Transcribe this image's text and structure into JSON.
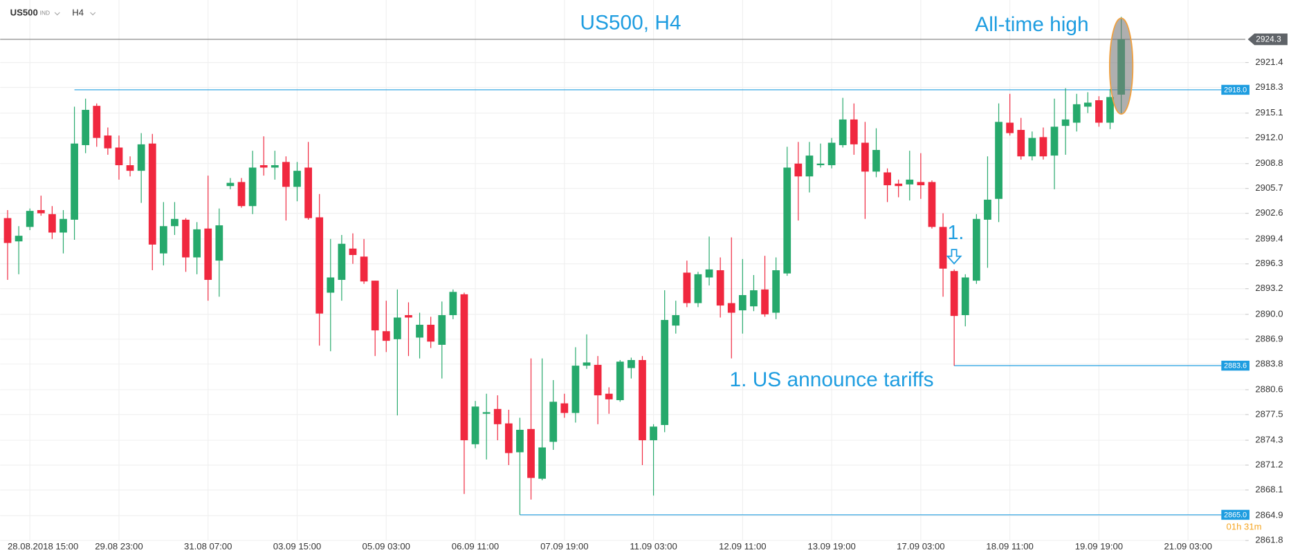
{
  "toolbar": {
    "symbol": "US500",
    "instrument_type": "IND",
    "timeframe": "H4"
  },
  "chart_data": {
    "type": "candlestick",
    "title": "US500, H4",
    "annotations": [
      "All-time high",
      "1. US announce tariffs",
      "1."
    ],
    "countdown": "01h 31m",
    "categories": [
      null,
      null,
      "28.08.2018 15:00",
      null,
      null,
      null,
      null,
      null,
      null,
      null,
      "29.08 23:00",
      null,
      null,
      null,
      null,
      null,
      null,
      null,
      "31.08 07:00",
      null,
      null,
      null,
      null,
      null,
      null,
      null,
      "03.09 15:00",
      null,
      null,
      null,
      null,
      null,
      null,
      null,
      "05.09 03:00",
      null,
      null,
      null,
      null,
      null,
      null,
      null,
      "06.09 11:00",
      null,
      null,
      null,
      null,
      null,
      null,
      null,
      "07.09 19:00",
      null,
      null,
      null,
      null,
      null,
      null,
      null,
      "11.09 03:00",
      null,
      null,
      null,
      null,
      null,
      null,
      null,
      "12.09 11:00",
      null,
      null,
      null,
      null,
      null,
      null,
      null,
      "13.09 19:00",
      null,
      null,
      null,
      null,
      null,
      null,
      null,
      "17.09 03:00",
      null,
      null,
      null,
      null,
      null,
      null,
      null,
      "18.09 11:00",
      null,
      null,
      null,
      null,
      null,
      null,
      null,
      "19.09 19:00",
      null,
      null,
      null,
      null,
      null,
      null,
      null,
      "21.09 03:00"
    ],
    "open": [
      2902.0,
      2899.1,
      2900.9,
      2903.0,
      2902.5,
      2900.2,
      2901.8,
      2911.1,
      2916.0,
      2912.3,
      2910.8,
      2908.6,
      2907.9,
      2911.3,
      2897.6,
      2901.0,
      2901.8,
      2897.1,
      2900.7,
      2896.7,
      2906.0,
      2906.5,
      2903.5,
      2908.6,
      2908.3,
      2909.0,
      2905.9,
      2908.3,
      2902.1,
      2892.7,
      2894.3,
      2898.2,
      2897.2,
      2894.2,
      2887.9,
      2886.9,
      2889.9,
      2887.1,
      2888.7,
      2886.2,
      2889.9,
      2892.5,
      2873.8,
      2877.6,
      2878.2,
      2876.4,
      2872.8,
      2875.7,
      2869.5,
      2874.1,
      2878.9,
      2877.7,
      2883.6,
      2883.7,
      2880.1,
      2879.3,
      2883.3,
      2884.3,
      2874.3,
      2876.2,
      2888.6,
      2895.2,
      2891.4,
      2894.6,
      2895.5,
      2891.4,
      2890.5,
      2891.0,
      2893.1,
      2890.2,
      2895.1,
      2908.8,
      2907.2,
      2908.6,
      2908.6,
      2911.1,
      2914.3,
      2911.4,
      2907.8,
      2907.7,
      2906.3,
      2906.2,
      2906.5,
      2906.5,
      2900.9,
      2895.4,
      2889.9,
      2894.2,
      2901.8,
      2904.4,
      2913.9,
      2913.0,
      2909.7,
      2912.1,
      2909.8,
      2913.5,
      2913.9,
      2915.9,
      2916.7,
      2913.9,
      2917.4,
      null,
      null,
      null,
      null,
      null,
      null
    ],
    "high": [
      2903.0,
      2901.0,
      2903.2,
      2904.8,
      2903.5,
      2903.0,
      2915.9,
      2916.9,
      2916.3,
      2913.3,
      2912.3,
      2909.7,
      2912.6,
      2912.5,
      2904.0,
      2904.0,
      2902.0,
      2901.5,
      2907.3,
      2903.2,
      2907.0,
      2907.0,
      2910.4,
      2912.2,
      2910.4,
      2909.7,
      2909.0,
      2911.5,
      2905.0,
      2899.4,
      2899.9,
      2900.1,
      2899.4,
      2894.2,
      2891.7,
      2893.1,
      2891.5,
      2890.2,
      2889.7,
      2891.6,
      2893.1,
      2892.7,
      2879.2,
      2880.1,
      2879.9,
      2878.1,
      2877.1,
      2884.5,
      2884.5,
      2881.8,
      2880.1,
      2885.9,
      2887.5,
      2884.8,
      2880.9,
      2884.3,
      2884.6,
      2884.8,
      2876.3,
      2893.0,
      2891.7,
      2896.7,
      2895.3,
      2899.7,
      2897.1,
      2899.6,
      2896.9,
      2894.9,
      2897.3,
      2897.1,
      2910.9,
      2911.5,
      2911.5,
      2911.3,
      2912.0,
      2917.0,
      2916.3,
      2914.0,
      2913.2,
      2908.2,
      2906.8,
      2910.4,
      2910.1,
      2906.7,
      2902.6,
      2895.6,
      2895.0,
      2902.5,
      2909.7,
      2916.3,
      2917.5,
      2914.5,
      2912.8,
      2913.3,
      2916.9,
      2918.2,
      2917.5,
      2917.7,
      2917.2,
      2918.1,
      2927.1,
      null,
      null,
      null,
      null,
      null,
      null
    ],
    "low": [
      2894.3,
      2895.0,
      2900.5,
      2902.3,
      2899.4,
      2897.6,
      2899.3,
      2910.1,
      2910.9,
      2909.9,
      2906.8,
      2907.2,
      2903.9,
      2895.5,
      2896.1,
      2899.9,
      2895.3,
      2895.0,
      2891.7,
      2892.2,
      2905.6,
      2903.3,
      2902.5,
      2907.3,
      2906.8,
      2901.7,
      2904.1,
      2901.8,
      2886.1,
      2885.4,
      2891.7,
      2896.3,
      2893.8,
      2884.8,
      2885.3,
      2877.4,
      2884.8,
      2884.5,
      2885.8,
      2882.0,
      2889.4,
      2867.6,
      2873.3,
      2871.9,
      2874.3,
      2871.2,
      2865.0,
      2866.9,
      2869.3,
      2873.1,
      2877.1,
      2876.5,
      2883.2,
      2876.3,
      2877.6,
      2879.1,
      2882.0,
      2871.2,
      2867.4,
      2875.3,
      2887.6,
      2890.9,
      2890.9,
      2893.6,
      2889.6,
      2884.5,
      2887.6,
      2890.4,
      2889.7,
      2889.4,
      2894.8,
      2901.7,
      2905.2,
      2908.3,
      2908.2,
      2910.8,
      2909.9,
      2901.9,
      2907.1,
      2904.0,
      2904.6,
      2904.2,
      2904.4,
      2900.7,
      2892.2,
      2883.6,
      2888.5,
      2893.8,
      2895.8,
      2901.5,
      2912.3,
      2909.3,
      2909.2,
      2909.3,
      2905.6,
      2909.9,
      2912.8,
      2915.1,
      2913.4,
      2913.1,
      2915.0,
      null,
      null,
      null,
      null,
      null,
      null
    ],
    "close": [
      2898.9,
      2899.8,
      2902.9,
      2902.6,
      2900.2,
      2901.9,
      2911.3,
      2915.5,
      2912.0,
      2910.7,
      2908.6,
      2907.9,
      2911.2,
      2898.7,
      2901.0,
      2901.9,
      2897.1,
      2900.6,
      2894.3,
      2901.1,
      2906.4,
      2903.5,
      2908.3,
      2908.3,
      2908.6,
      2905.9,
      2907.9,
      2902.0,
      2890.1,
      2894.6,
      2898.8,
      2897.4,
      2894.1,
      2888.0,
      2886.7,
      2889.6,
      2889.6,
      2888.7,
      2886.6,
      2889.9,
      2892.8,
      2874.3,
      2878.5,
      2877.8,
      2876.3,
      2872.7,
      2875.6,
      2869.6,
      2873.4,
      2879.1,
      2877.7,
      2883.6,
      2884.0,
      2879.9,
      2879.4,
      2884.1,
      2884.3,
      2874.3,
      2876.0,
      2889.3,
      2889.9,
      2891.4,
      2895.0,
      2895.6,
      2891.1,
      2890.2,
      2892.4,
      2893.0,
      2890.0,
      2895.5,
      2908.3,
      2907.2,
      2909.8,
      2908.8,
      2911.4,
      2914.3,
      2911.2,
      2907.8,
      2910.5,
      2906.1,
      2906.0,
      2906.8,
      2906.1,
      2900.9,
      2895.7,
      2889.8,
      2894.6,
      2901.9,
      2904.3,
      2914.0,
      2912.6,
      2909.7,
      2912.0,
      2909.7,
      2913.4,
      2914.3,
      2916.2,
      2916.4,
      2913.9,
      2917.1,
      2924.3,
      null,
      null,
      null,
      null,
      null,
      null
    ],
    "up_color": "#26a96c",
    "down_color": "#f0283f",
    "last_price": 2924.3,
    "levels": [
      {
        "value": 2918,
        "label": "2918.0"
      },
      {
        "value": 2883.6,
        "label": "2883.6"
      },
      {
        "value": 2865,
        "label": "2865.0"
      }
    ],
    "level_color": "#1e9de0",
    "ylim": [
      2861.8,
      2929.2
    ],
    "yticks": [
      2921.4,
      2918.3,
      2915.1,
      {
        "value": 2912,
        "label": "2912.0"
      },
      2908.8,
      2905.7,
      2902.6,
      2899.4,
      2896.3,
      2893.2,
      {
        "value": 2890,
        "label": "2890.0"
      },
      2886.9,
      2883.8,
      2880.6,
      2877.5,
      2874.3,
      2871.2,
      2868.1,
      2864.9,
      2861.8
    ],
    "grid": true
  }
}
